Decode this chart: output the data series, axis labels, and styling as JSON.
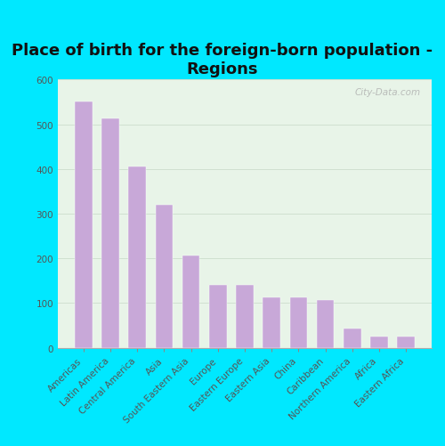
{
  "title": "Place of birth for the foreign-born population -\nRegions",
  "categories": [
    "Americas",
    "Latin America",
    "Central America",
    "Asia",
    "South Eastern Asia",
    "Europe",
    "Eastern Europe",
    "Eastern Asia",
    "China",
    "Caribbean",
    "Northern America",
    "Africa",
    "Eastern Africa"
  ],
  "values": [
    550,
    513,
    405,
    320,
    207,
    140,
    140,
    112,
    112,
    107,
    42,
    25,
    25
  ],
  "bar_color": "#c8a8d8",
  "background_outer": "#00e8ff",
  "background_inner_top": "#e8f5e0",
  "background_inner_bottom": "#d0f0f0",
  "ylim": [
    0,
    600
  ],
  "yticks": [
    0,
    100,
    200,
    300,
    400,
    500,
    600
  ],
  "title_fontsize": 13,
  "tick_label_fontsize": 7.5,
  "watermark": "City-Data.com"
}
